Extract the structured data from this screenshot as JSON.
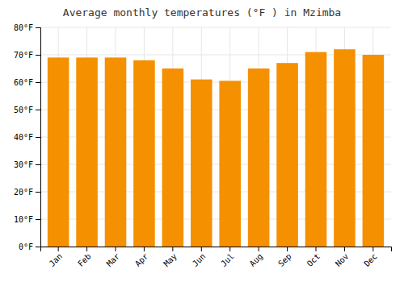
{
  "chart_data": {
    "type": "bar",
    "title": "Average monthly temperatures (°F ) in Mzimba",
    "categories": [
      "Jan",
      "Feb",
      "Mar",
      "Apr",
      "May",
      "Jun",
      "Jul",
      "Aug",
      "Sep",
      "Oct",
      "Nov",
      "Dec"
    ],
    "values": [
      69,
      69,
      69,
      68,
      65,
      61,
      60.5,
      65,
      67,
      71,
      72,
      70
    ],
    "color": "#F59000",
    "ylim": [
      0,
      80
    ],
    "yticks": [
      {
        "value": 0,
        "label": "0°F"
      },
      {
        "value": 10,
        "label": "10°F"
      },
      {
        "value": 20,
        "label": "20°F"
      },
      {
        "value": 30,
        "label": "30°F"
      },
      {
        "value": 40,
        "label": "40°F"
      },
      {
        "value": 50,
        "label": "50°F"
      },
      {
        "value": 60,
        "label": "60°F"
      },
      {
        "value": 70,
        "label": "70°F"
      },
      {
        "value": 80,
        "label": "80°F"
      }
    ],
    "grid": true
  }
}
